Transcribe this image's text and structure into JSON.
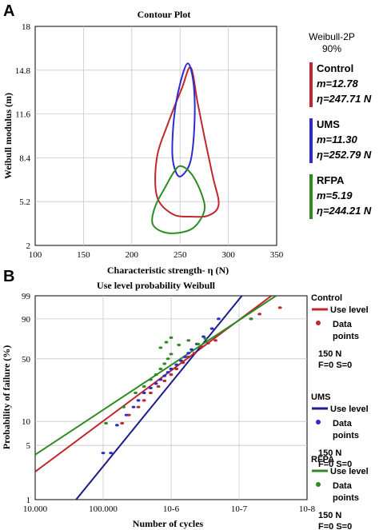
{
  "colors": {
    "control": "#c0272d",
    "ums": "#2b2bd0",
    "rfpa": "#2e8b22",
    "ums_line": "#1c1c8a",
    "grid": "#c8c8c8"
  },
  "chart_data": [
    {
      "panel_label": "A",
      "type": "line",
      "title": "Contour Plot",
      "xlabel": "Characteristic strength- η (N)",
      "ylabel": "Weibull modulus (m)",
      "xlim": [
        100,
        350
      ],
      "ylim": [
        2,
        18
      ],
      "xticks": [
        "100",
        "150",
        "200",
        "250",
        "300",
        "350"
      ],
      "yticks": [
        "2",
        "5.2",
        "8.4",
        "11.6",
        "14.8",
        "18"
      ],
      "grid": true,
      "legend_title": [
        "Weibull-2P",
        "90%"
      ],
      "legend_position": "right",
      "series": [
        {
          "name": "Control",
          "m_label": "m=12.78",
          "eta_label": "η=247.71 N",
          "points": [
            [
              261,
              15
            ],
            [
              268,
              12.5
            ],
            [
              275,
              10
            ],
            [
              284,
              7
            ],
            [
              290,
              5
            ],
            [
              280,
              4.2
            ],
            [
              262,
              4.1
            ],
            [
              242,
              4.3
            ],
            [
              226,
              5.6
            ],
            [
              226,
              8.4
            ],
            [
              238,
              11
            ],
            [
              252,
              13.5
            ]
          ]
        },
        {
          "name": "UMS",
          "m_label": "m=11.30",
          "eta_label": "η=252.79 N",
          "points": [
            [
              258,
              15.3
            ],
            [
              264,
              13.8
            ],
            [
              265,
              11
            ],
            [
              261,
              8.2
            ],
            [
              252,
              7.1
            ],
            [
              246,
              7.3
            ],
            [
              242,
              8.7
            ],
            [
              244,
              11.5
            ],
            [
              250,
              13.8
            ]
          ]
        },
        {
          "name": "RFPA",
          "m_label": "m=5.19",
          "eta_label": "η=244.21 N",
          "points": [
            [
              251,
              7.8
            ],
            [
              262,
              7.2
            ],
            [
              272,
              5.8
            ],
            [
              275,
              4.5
            ],
            [
              262,
              3.2
            ],
            [
              238,
              2.9
            ],
            [
              222,
              3.5
            ],
            [
              224,
              4.8
            ],
            [
              235,
              6.3
            ],
            [
              244,
              7.4
            ]
          ]
        }
      ]
    },
    {
      "panel_label": "B",
      "type": "scatter",
      "title": "Use level probability Weibull",
      "xlabel": "Number of cycles",
      "ylabel": "Probability of failure (%)",
      "x_scale": "log",
      "y_scale": "weibull",
      "xlim": [
        10000,
        100000000
      ],
      "ylim": [
        1,
        99
      ],
      "xticks": [
        {
          "value": 10000,
          "label": "10.000"
        },
        {
          "value": 100000,
          "label": "100.000"
        },
        {
          "value": 1000000,
          "label": "10-6"
        },
        {
          "value": 10000000,
          "label": "10-7"
        },
        {
          "value": 100000000,
          "label": "10-8"
        }
      ],
      "yticks": [
        "1",
        "5",
        "10",
        "50",
        "90",
        "99"
      ],
      "grid": true,
      "legend_position": "right",
      "series": [
        {
          "name": "Control",
          "line_label": "Use level",
          "points_label": "Data points",
          "stress": "150 N",
          "fs": "F=0  S=0",
          "line": [
            [
              10000,
              2.3
            ],
            [
              30000000,
              99
            ]
          ],
          "points": [
            [
              190000,
              9.5
            ],
            [
              240000,
              12
            ],
            [
              330000,
              15
            ],
            [
              400000,
              18
            ],
            [
              500000,
              22
            ],
            [
              650000,
              26
            ],
            [
              800000,
              30
            ],
            [
              1000000,
              35
            ],
            [
              1200000,
              40
            ],
            [
              1500000,
              46
            ],
            [
              1800000,
              52
            ],
            [
              2200000,
              56
            ],
            [
              2800000,
              63
            ],
            [
              3500000,
              67
            ],
            [
              4500000,
              70
            ],
            [
              15000000,
              90
            ],
            [
              20000000,
              93
            ],
            [
              40000000,
              96
            ]
          ]
        },
        {
          "name": "UMS",
          "line_label": "Use level",
          "points_label": "Data points",
          "stress": "150 N",
          "fs": "F=0  S=0",
          "line": [
            [
              40000,
              1
            ],
            [
              11000000,
              99
            ]
          ],
          "points": [
            [
              100000,
              4
            ],
            [
              130000,
              4
            ],
            [
              160000,
              9
            ],
            [
              220000,
              12
            ],
            [
              280000,
              15
            ],
            [
              330000,
              18
            ],
            [
              400000,
              22
            ],
            [
              500000,
              25
            ],
            [
              600000,
              28
            ],
            [
              700000,
              31
            ],
            [
              800000,
              34
            ],
            [
              900000,
              37
            ],
            [
              1000000,
              40
            ],
            [
              1200000,
              44
            ],
            [
              1400000,
              48
            ],
            [
              1600000,
              52
            ],
            [
              1800000,
              56
            ],
            [
              2000000,
              60
            ],
            [
              2400000,
              66
            ],
            [
              3000000,
              74
            ],
            [
              4000000,
              82
            ],
            [
              5000000,
              90
            ]
          ]
        },
        {
          "name": "RFPA",
          "line_label": "Use level",
          "points_label": "Data points",
          "stress": "150 N",
          "fs": "F=0  S=0",
          "line": [
            [
              10000,
              3.8
            ],
            [
              35000000,
              99
            ]
          ],
          "points": [
            [
              110000,
              9.5
            ],
            [
              200000,
              15
            ],
            [
              300000,
              22
            ],
            [
              400000,
              26
            ],
            [
              500000,
              31
            ],
            [
              600000,
              35
            ],
            [
              700000,
              40
            ],
            [
              800000,
              45
            ],
            [
              900000,
              50
            ],
            [
              1000000,
              55
            ],
            [
              700000,
              62
            ],
            [
              850000,
              68
            ],
            [
              1000000,
              73
            ],
            [
              1300000,
              65
            ],
            [
              1800000,
              70
            ],
            [
              2500000,
              66
            ],
            [
              3200000,
              72
            ],
            [
              15000000,
              90
            ]
          ]
        }
      ]
    }
  ]
}
